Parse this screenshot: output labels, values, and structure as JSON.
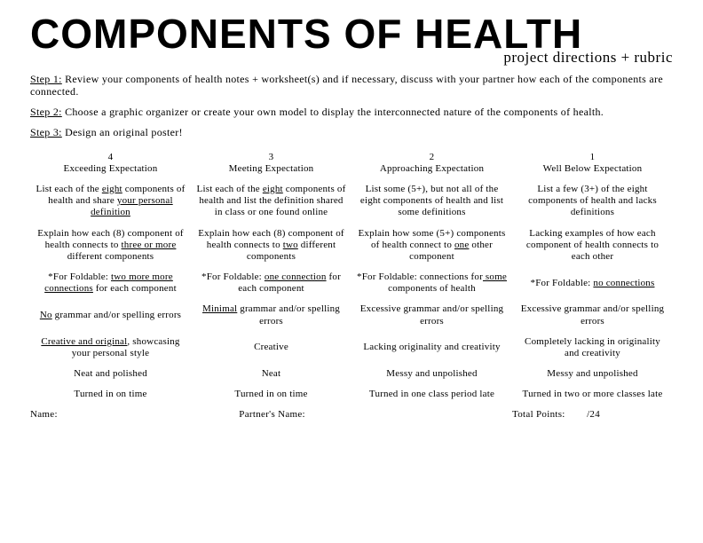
{
  "title": "COMPONENTS OF HEALTH",
  "subtitle": "project directions + rubric",
  "steps": [
    {
      "label": "Step 1:",
      "text": " Review your components of health notes + worksheet(s) and if necessary, discuss with your partner how each of the components are connected."
    },
    {
      "label": "Step 2:",
      "text": " Choose a graphic organizer or create your own model to display the interconnected nature of the components of health."
    },
    {
      "label": "Step 3:",
      "text": " Design an original poster!"
    }
  ],
  "columns": [
    {
      "num": "4",
      "label": "Exceeding Expectation"
    },
    {
      "num": "3",
      "label": "Meeting Expectation"
    },
    {
      "num": "2",
      "label": "Approaching Expectation"
    },
    {
      "num": "1",
      "label": "Well Below Expectation"
    }
  ],
  "rows": [
    [
      {
        "pre": "List each of the ",
        "u": "eight",
        "mid": " components of health and share ",
        "u2": "your personal definition",
        "post": ""
      },
      {
        "pre": "List each of the ",
        "u": "eight",
        "mid": " components of health and list the definition shared in class or one found online",
        "u2": "",
        "post": ""
      },
      {
        "pre": "List some (5+), but not all of the eight components of health and list some definitions",
        "u": "",
        "mid": "",
        "u2": "",
        "post": ""
      },
      {
        "pre": "List a few (3+) of the eight components of health and lacks definitions",
        "u": "",
        "mid": "",
        "u2": "",
        "post": ""
      }
    ],
    [
      {
        "pre": "Explain how each (8) component of health connects to ",
        "u": "three or more ",
        "mid": "different components",
        "u2": "",
        "post": ""
      },
      {
        "pre": "Explain how each (8) component of health connects to ",
        "u": "two",
        "mid": " different components",
        "u2": "",
        "post": ""
      },
      {
        "pre": "Explain how some (5+) components of health connect to ",
        "u": "one",
        "mid": " other component",
        "u2": "",
        "post": ""
      },
      {
        "pre": "Lacking examples of how each component of health connects to each other",
        "u": "",
        "mid": "",
        "u2": "",
        "post": ""
      }
    ],
    [
      {
        "pre": "*For Foldable: ",
        "u": "two more more connections",
        "mid": " for each component",
        "u2": "",
        "post": ""
      },
      {
        "pre": "*For Foldable: ",
        "u": "one connection",
        "mid": " for each component",
        "u2": "",
        "post": ""
      },
      {
        "pre": "*For Foldable: connections for",
        "u": " some ",
        "mid": "components of health",
        "u2": "",
        "post": ""
      },
      {
        "pre": "*For Foldable: ",
        "u": "no connections",
        "mid": "",
        "u2": "",
        "post": ""
      }
    ],
    [
      {
        "pre": "",
        "u": "No",
        "mid": " grammar and/or spelling errors",
        "u2": "",
        "post": ""
      },
      {
        "pre": "",
        "u": "Minimal",
        "mid": " grammar and/or spelling errors",
        "u2": "",
        "post": ""
      },
      {
        "pre": "Excessive grammar and/or spelling errors",
        "u": "",
        "mid": "",
        "u2": "",
        "post": ""
      },
      {
        "pre": "Excessive grammar and/or spelling errors",
        "u": "",
        "mid": "",
        "u2": "",
        "post": ""
      }
    ],
    [
      {
        "pre": "",
        "u": "Creative and original",
        "mid": ", showcasing your personal style",
        "u2": "",
        "post": ""
      },
      {
        "pre": "Creative",
        "u": "",
        "mid": "",
        "u2": "",
        "post": ""
      },
      {
        "pre": "Lacking originality and creativity",
        "u": "",
        "mid": "",
        "u2": "",
        "post": ""
      },
      {
        "pre": "Completely lacking in originality and creativity",
        "u": "",
        "mid": "",
        "u2": "",
        "post": ""
      }
    ],
    [
      {
        "pre": "Neat and polished",
        "u": "",
        "mid": "",
        "u2": "",
        "post": ""
      },
      {
        "pre": "Neat",
        "u": "",
        "mid": "",
        "u2": "",
        "post": ""
      },
      {
        "pre": "Messy and unpolished",
        "u": "",
        "mid": "",
        "u2": "",
        "post": ""
      },
      {
        "pre": "Messy and unpolished",
        "u": "",
        "mid": "",
        "u2": "",
        "post": ""
      }
    ],
    [
      {
        "pre": "Turned in on time",
        "u": "",
        "mid": "",
        "u2": "",
        "post": ""
      },
      {
        "pre": "Turned in on time",
        "u": "",
        "mid": "",
        "u2": "",
        "post": ""
      },
      {
        "pre": "Turned in one class period late",
        "u": "",
        "mid": "",
        "u2": "",
        "post": ""
      },
      {
        "pre": "Turned in two or more classes late",
        "u": "",
        "mid": "",
        "u2": "",
        "post": ""
      }
    ]
  ],
  "footer": {
    "name_label": "Name:",
    "partner_label": "Partner's Name:",
    "points_label": "Total Points:",
    "points_max": "/24"
  }
}
